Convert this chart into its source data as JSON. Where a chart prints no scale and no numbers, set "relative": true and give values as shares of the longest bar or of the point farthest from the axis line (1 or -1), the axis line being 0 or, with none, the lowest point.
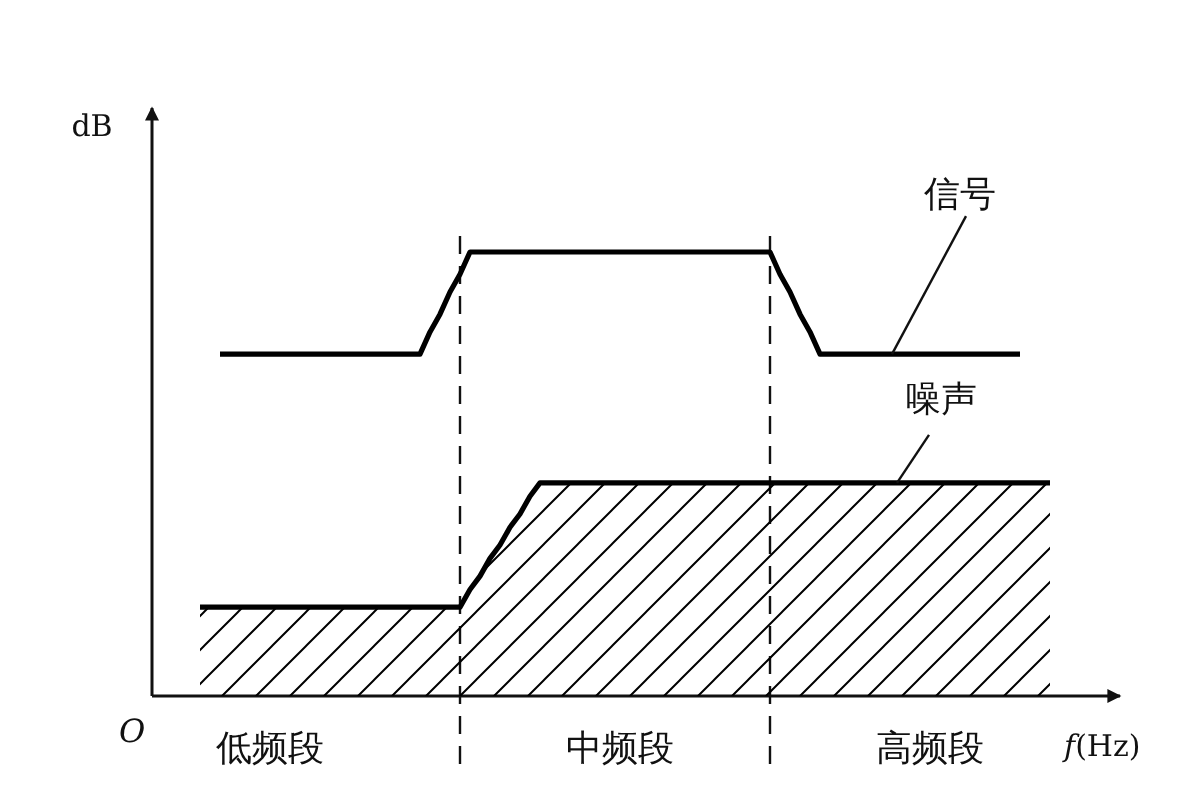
{
  "chart_data": {
    "type": "line",
    "relative": true,
    "xlabel": "f(Hz)",
    "ylabel": "dB",
    "categories": [
      null,
      null,
      null,
      null,
      null,
      null,
      null,
      "低频段",
      null,
      null,
      null,
      null,
      null,
      null,
      null,
      null,
      null,
      null,
      null,
      null,
      null,
      null,
      null,
      null,
      null,
      null,
      null,
      null,
      null,
      null,
      null,
      null,
      null,
      null,
      null,
      null,
      null,
      null,
      null,
      null,
      null,
      null,
      "中频段",
      null,
      null,
      null,
      null,
      null,
      null,
      null,
      null,
      null,
      null,
      null,
      null,
      null,
      null,
      null,
      null,
      null,
      null,
      null,
      null,
      null,
      null,
      null,
      null,
      null,
      null,
      null,
      null,
      null,
      null,
      "高频段",
      null,
      null,
      null,
      null,
      null,
      null,
      null,
      null,
      null,
      null,
      null,
      null
    ],
    "series": [
      {
        "name": "信号",
        "type": "line",
        "color": "#000000",
        "values": [
          null,
          null,
          0.77,
          0.77,
          0.77,
          0.77,
          0.77,
          0.77,
          0.77,
          0.77,
          0.77,
          0.77,
          0.77,
          0.77,
          0.77,
          0.77,
          0.77,
          0.77,
          0.77,
          0.77,
          0.77,
          0.77,
          0.77,
          0.82,
          0.86,
          0.91,
          0.95,
          1,
          1,
          1,
          1,
          1,
          1,
          1,
          1,
          1,
          1,
          1,
          1,
          1,
          1,
          1,
          1,
          1,
          1,
          1,
          1,
          1,
          1,
          1,
          1,
          1,
          1,
          1,
          1,
          1,
          1,
          1,
          0.95,
          0.91,
          0.86,
          0.82,
          0.77,
          0.77,
          0.77,
          0.77,
          0.77,
          0.77,
          0.77,
          0.77,
          0.77,
          0.77,
          0.77,
          0.77,
          0.77,
          0.77,
          0.77,
          0.77,
          0.77,
          0.77,
          0.77,
          0.77,
          0.77,
          null,
          null,
          null
        ]
      },
      {
        "name": "噪声",
        "type": "area",
        "color": "#000000",
        "values": [
          0.2,
          0.2,
          0.2,
          0.2,
          0.2,
          0.2,
          0.2,
          0.2,
          0.2,
          0.2,
          0.2,
          0.2,
          0.2,
          0.2,
          0.2,
          0.2,
          0.2,
          0.2,
          0.2,
          0.2,
          0.2,
          0.2,
          0.2,
          0.2,
          0.2,
          0.2,
          0.2,
          0.24,
          0.27,
          0.31,
          0.34,
          0.38,
          0.41,
          0.45,
          0.48,
          0.48,
          0.48,
          0.48,
          0.48,
          0.48,
          0.48,
          0.48,
          0.48,
          0.48,
          0.48,
          0.48,
          0.48,
          0.48,
          0.48,
          0.48,
          0.48,
          0.48,
          0.48,
          0.48,
          0.48,
          0.48,
          0.48,
          0.48,
          0.48,
          0.48,
          0.48,
          0.48,
          0.48,
          0.48,
          0.48,
          0.48,
          0.48,
          0.48,
          0.48,
          0.48,
          0.48,
          0.48,
          0.48,
          0.48,
          0.48,
          0.48,
          0.48,
          0.48,
          0.48,
          0.48,
          0.48,
          0.48,
          0.48,
          0.48,
          0.48,
          0.48
        ]
      }
    ],
    "annotations": [
      "O"
    ]
  }
}
